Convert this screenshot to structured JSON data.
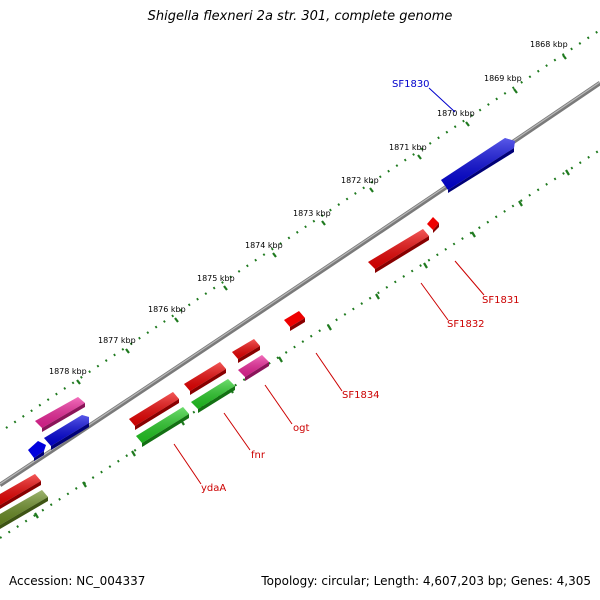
{
  "title": "Shigella flexneri 2a str. 301, complete genome",
  "footer": {
    "accession": "Accession: NC_004337",
    "summary": "Topology: circular; Length: 4,607,203 bp; Genes: 4,305"
  },
  "colors": {
    "backbone": "#7a7a7a",
    "ticks": "#1f7a1f",
    "red": "#ee0000",
    "blue": "#0000dd",
    "green": "#22cc22",
    "pink": "#ee2299",
    "olive": "#6b8e23",
    "label_red": "#cc0000",
    "label_blue": "#0000cc"
  },
  "ticks": [
    {
      "label": "1868 kbp"
    },
    {
      "label": "1869 kbp"
    },
    {
      "label": "1870 kbp"
    },
    {
      "label": "1871 kbp"
    },
    {
      "label": "1872 kbp"
    },
    {
      "label": "1873 kbp"
    },
    {
      "label": "1874 kbp"
    },
    {
      "label": "1875 kbp"
    },
    {
      "label": "1876 kbp"
    },
    {
      "label": "1877 kbp"
    },
    {
      "label": "1878 kbp"
    }
  ],
  "genes": [
    {
      "label": "SF1830",
      "color": "blue"
    },
    {
      "label": "SF1831",
      "color": "red"
    },
    {
      "label": "SF1832",
      "color": "red"
    },
    {
      "label": "SF1834",
      "color": "red"
    },
    {
      "label": "ogt",
      "color": "red"
    },
    {
      "label": "fnr",
      "color": "red"
    },
    {
      "label": "ydaA",
      "color": "red"
    }
  ]
}
